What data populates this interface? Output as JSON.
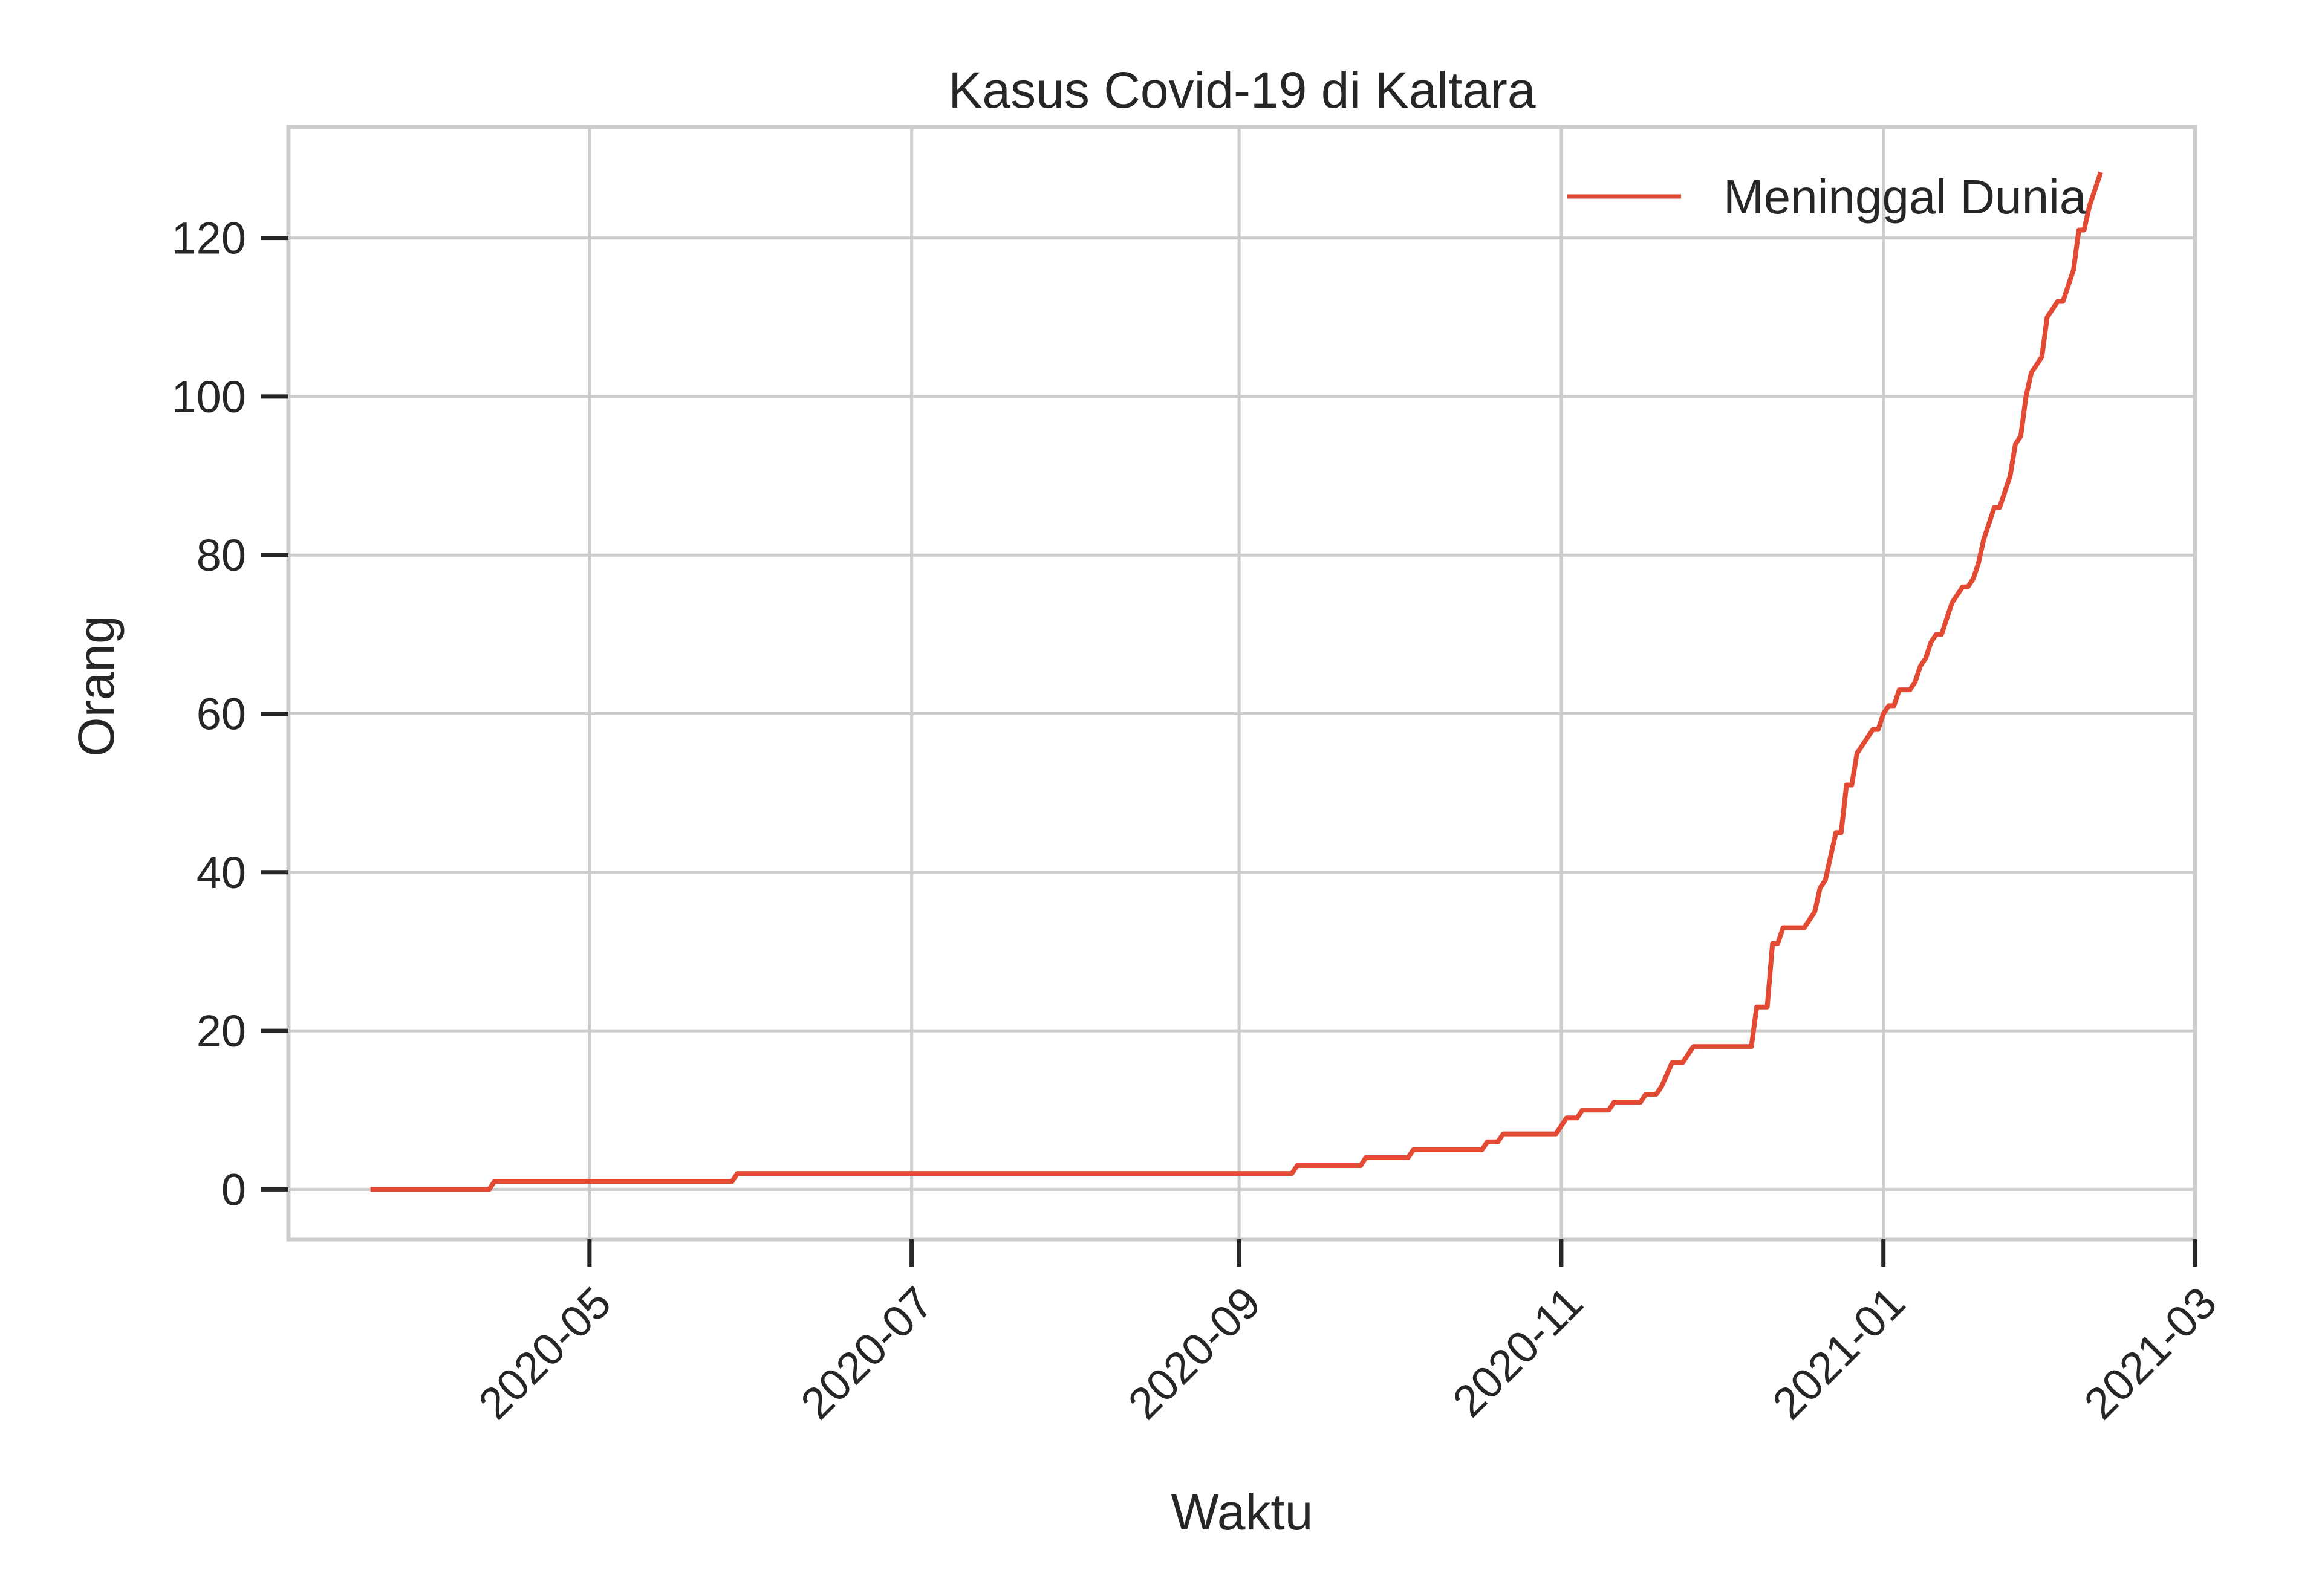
{
  "chart_data": {
    "type": "line",
    "title": "Kasus Covid-19 di Kaltara",
    "xlabel": "Waktu",
    "ylabel": "Orang",
    "xlim": [
      "2020-03-05",
      "2021-03-01"
    ],
    "ylim": [
      -6.3,
      134
    ],
    "grid": true,
    "legend_position": "top-right",
    "x_ticks": [
      "2020-05",
      "2020-07",
      "2020-09",
      "2020-11",
      "2021-01",
      "2021-03"
    ],
    "y_ticks": [
      0,
      20,
      40,
      60,
      80,
      100,
      120
    ],
    "series": [
      {
        "name": "Meninggal Dunia",
        "color": "#e24a33",
        "points": [
          [
            "2020-03-21",
            0
          ],
          [
            "2020-04-12",
            0
          ],
          [
            "2020-04-13",
            1
          ],
          [
            "2020-05-28",
            1
          ],
          [
            "2020-05-29",
            2
          ],
          [
            "2020-09-11",
            2
          ],
          [
            "2020-09-12",
            3
          ],
          [
            "2020-09-24",
            3
          ],
          [
            "2020-09-25",
            4
          ],
          [
            "2020-10-03",
            4
          ],
          [
            "2020-10-04",
            5
          ],
          [
            "2020-10-17",
            5
          ],
          [
            "2020-10-18",
            6
          ],
          [
            "2020-10-20",
            6
          ],
          [
            "2020-10-21",
            7
          ],
          [
            "2020-10-31",
            7
          ],
          [
            "2020-11-02",
            9
          ],
          [
            "2020-11-04",
            9
          ],
          [
            "2020-11-05",
            10
          ],
          [
            "2020-11-10",
            10
          ],
          [
            "2020-11-11",
            11
          ],
          [
            "2020-11-16",
            11
          ],
          [
            "2020-11-17",
            12
          ],
          [
            "2020-11-19",
            12
          ],
          [
            "2020-11-20",
            13
          ],
          [
            "2020-11-22",
            16
          ],
          [
            "2020-11-24",
            16
          ],
          [
            "2020-11-26",
            18
          ],
          [
            "2020-12-07",
            18
          ],
          [
            "2020-12-08",
            23
          ],
          [
            "2020-12-10",
            23
          ],
          [
            "2020-12-11",
            31
          ],
          [
            "2020-12-12",
            31
          ],
          [
            "2020-12-13",
            33
          ],
          [
            "2020-12-17",
            33
          ],
          [
            "2020-12-19",
            35
          ],
          [
            "2020-12-20",
            38
          ],
          [
            "2020-12-21",
            39
          ],
          [
            "2020-12-23",
            45
          ],
          [
            "2020-12-24",
            45
          ],
          [
            "2020-12-25",
            51
          ],
          [
            "2020-12-26",
            51
          ],
          [
            "2020-12-27",
            55
          ],
          [
            "2020-12-29",
            57
          ],
          [
            "2020-12-30",
            58
          ],
          [
            "2020-12-31",
            58
          ],
          [
            "2021-01-01",
            60
          ],
          [
            "2021-01-02",
            61
          ],
          [
            "2021-01-03",
            61
          ],
          [
            "2021-01-04",
            63
          ],
          [
            "2021-01-06",
            63
          ],
          [
            "2021-01-07",
            64
          ],
          [
            "2021-01-08",
            66
          ],
          [
            "2021-01-09",
            67
          ],
          [
            "2021-01-10",
            69
          ],
          [
            "2021-01-11",
            70
          ],
          [
            "2021-01-12",
            70
          ],
          [
            "2021-01-13",
            72
          ],
          [
            "2021-01-14",
            74
          ],
          [
            "2021-01-15",
            75
          ],
          [
            "2021-01-16",
            76
          ],
          [
            "2021-01-17",
            76
          ],
          [
            "2021-01-18",
            77
          ],
          [
            "2021-01-19",
            79
          ],
          [
            "2021-01-20",
            82
          ],
          [
            "2021-01-22",
            86
          ],
          [
            "2021-01-23",
            86
          ],
          [
            "2021-01-24",
            88
          ],
          [
            "2021-01-25",
            90
          ],
          [
            "2021-01-26",
            94
          ],
          [
            "2021-01-27",
            95
          ],
          [
            "2021-01-28",
            100
          ],
          [
            "2021-01-29",
            103
          ],
          [
            "2021-01-31",
            105
          ],
          [
            "2021-02-01",
            110
          ],
          [
            "2021-02-02",
            111
          ],
          [
            "2021-02-03",
            112
          ],
          [
            "2021-02-04",
            112
          ],
          [
            "2021-02-05",
            114
          ],
          [
            "2021-02-06",
            116
          ],
          [
            "2021-02-07",
            121
          ],
          [
            "2021-02-08",
            121
          ],
          [
            "2021-02-09",
            124
          ],
          [
            "2021-02-10",
            126
          ],
          [
            "2021-02-11",
            128
          ]
        ]
      }
    ]
  }
}
